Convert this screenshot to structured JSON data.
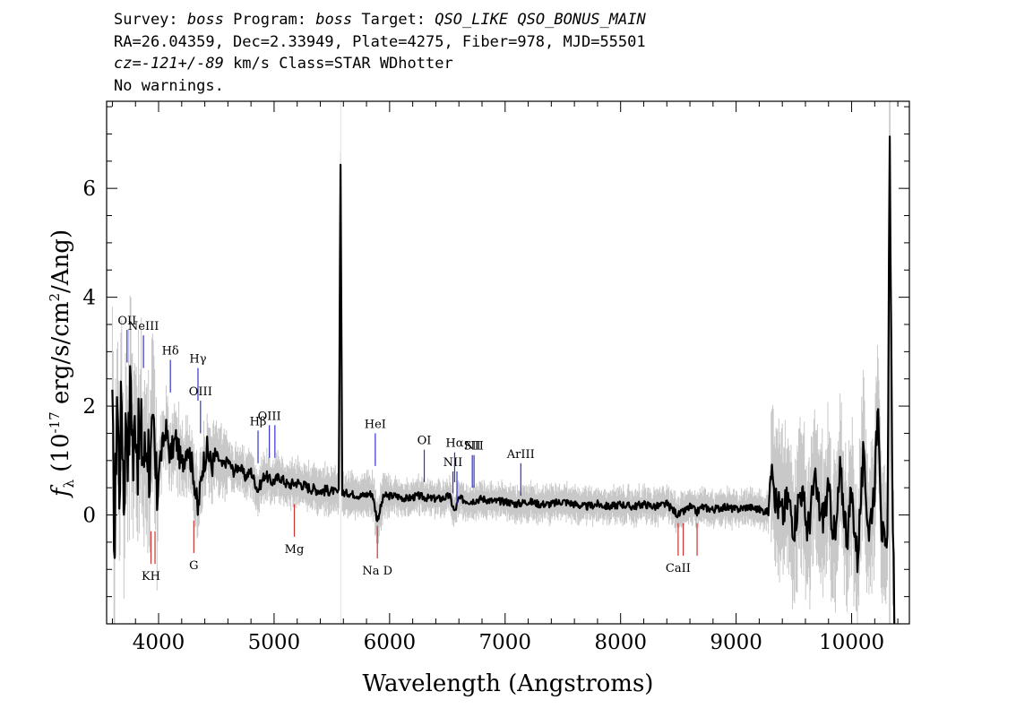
{
  "header": {
    "line1": {
      "a": "Survey: ",
      "b": "boss",
      "c": " Program: ",
      "d": "boss",
      "e": " Target: ",
      "f": "QSO_LIKE QSO_BONUS_MAIN"
    },
    "line2": "RA=26.04359, Dec=2.33949, Plate=4275, Fiber=978, MJD=55501",
    "line3": {
      "a": "cz=-121+/-89",
      "b": " km/s Class=STAR WDhotter"
    },
    "line4": "No warnings."
  },
  "chart_data": {
    "type": "line",
    "title": "",
    "xlabel": "Wavelength (Angstroms)",
    "ylabel": "f_λ (10^-17 erg/s/cm^2/Ang)",
    "xlim": [
      3550,
      10500
    ],
    "ylim": [
      -2.0,
      7.6
    ],
    "x_ticks": [
      4000,
      5000,
      6000,
      7000,
      8000,
      9000,
      10000
    ],
    "y_ticks": [
      0,
      2,
      4,
      6
    ],
    "series": [
      {
        "style": "black",
        "points": [
          [
            3600,
            1.6
          ],
          [
            3620,
            -0.6
          ],
          [
            3640,
            2.4
          ],
          [
            3660,
            0.6
          ],
          [
            3680,
            2.2
          ],
          [
            3700,
            0.4
          ],
          [
            3720,
            2.0
          ],
          [
            3740,
            1.2
          ],
          [
            3760,
            2.6
          ],
          [
            3780,
            0.9
          ],
          [
            3800,
            2.0
          ],
          [
            3820,
            1.2
          ],
          [
            3850,
            1.4
          ],
          [
            3880,
            1.0
          ],
          [
            3900,
            1.5
          ],
          [
            3930,
            0.8
          ],
          [
            3960,
            1.4
          ],
          [
            3980,
            0.3
          ],
          [
            4000,
            0.9
          ],
          [
            4030,
            1.2
          ],
          [
            4060,
            1.6
          ],
          [
            4100,
            1.1
          ],
          [
            4150,
            1.4
          ],
          [
            4200,
            0.9
          ],
          [
            4250,
            1.3
          ],
          [
            4300,
            0.8
          ],
          [
            4340,
            0.05
          ],
          [
            4380,
            0.9
          ],
          [
            4420,
            1.2
          ],
          [
            4460,
            0.9
          ],
          [
            4500,
            1.1
          ],
          [
            4550,
            0.9
          ],
          [
            4600,
            1.0
          ],
          [
            4650,
            0.8
          ],
          [
            4700,
            0.9
          ],
          [
            4750,
            0.7
          ],
          [
            4800,
            0.8
          ],
          [
            4860,
            0.45
          ],
          [
            4920,
            0.75
          ],
          [
            4980,
            0.6
          ],
          [
            5050,
            0.7
          ],
          [
            5120,
            0.55
          ],
          [
            5200,
            0.6
          ],
          [
            5300,
            0.5
          ],
          [
            5400,
            0.45
          ],
          [
            5500,
            0.45
          ],
          [
            5560,
            0.4
          ],
          [
            5575,
            6.5
          ],
          [
            5590,
            0.4
          ],
          [
            5650,
            0.4
          ],
          [
            5750,
            0.35
          ],
          [
            5850,
            0.4
          ],
          [
            5893,
            -0.1
          ],
          [
            5950,
            0.35
          ],
          [
            6050,
            0.35
          ],
          [
            6150,
            0.3
          ],
          [
            6250,
            0.35
          ],
          [
            6350,
            0.3
          ],
          [
            6450,
            0.3
          ],
          [
            6520,
            0.35
          ],
          [
            6563,
            0.05
          ],
          [
            6600,
            0.3
          ],
          [
            6700,
            0.25
          ],
          [
            6800,
            0.3
          ],
          [
            6900,
            0.25
          ],
          [
            7000,
            0.25
          ],
          [
            7100,
            0.2
          ],
          [
            7200,
            0.25
          ],
          [
            7300,
            0.2
          ],
          [
            7400,
            0.2
          ],
          [
            7500,
            0.25
          ],
          [
            7600,
            0.2
          ],
          [
            7700,
            0.15
          ],
          [
            7800,
            0.2
          ],
          [
            7900,
            0.15
          ],
          [
            8000,
            0.2
          ],
          [
            8100,
            0.15
          ],
          [
            8200,
            0.2
          ],
          [
            8300,
            0.15
          ],
          [
            8400,
            0.2
          ],
          [
            8498,
            0.0
          ],
          [
            8542,
            0.05
          ],
          [
            8600,
            0.15
          ],
          [
            8662,
            0.05
          ],
          [
            8700,
            0.15
          ],
          [
            8800,
            0.1
          ],
          [
            8900,
            0.15
          ],
          [
            9000,
            0.1
          ],
          [
            9100,
            0.15
          ],
          [
            9200,
            0.1
          ],
          [
            9280,
            0.05
          ],
          [
            9310,
            1.2
          ],
          [
            9340,
            0.3
          ],
          [
            9400,
            0.0
          ],
          [
            9450,
            0.3
          ],
          [
            9500,
            -0.2
          ],
          [
            9560,
            0.5
          ],
          [
            9620,
            -0.3
          ],
          [
            9680,
            0.6
          ],
          [
            9740,
            -0.1
          ],
          [
            9800,
            0.4
          ],
          [
            9860,
            -0.5
          ],
          [
            9900,
            0.8
          ],
          [
            9960,
            -0.4
          ],
          [
            10000,
            0.4
          ],
          [
            10050,
            -0.8
          ],
          [
            10100,
            1.0
          ],
          [
            10150,
            -0.3
          ],
          [
            10200,
            0.6
          ],
          [
            10230,
            2.2
          ],
          [
            10260,
            -0.2
          ],
          [
            10290,
            -0.7
          ],
          [
            10310,
            -0.7
          ],
          [
            10330,
            7.2
          ],
          [
            10350,
            1.0
          ],
          [
            10370,
            -2.0
          ]
        ]
      }
    ],
    "emission_lines": [
      {
        "label": "OII",
        "wave": 3727,
        "y0": 2.8,
        "y1": 3.4,
        "color": "#3333cc"
      },
      {
        "label": "NeIII",
        "wave": 3869,
        "y0": 2.7,
        "y1": 3.3,
        "color": "#3333cc"
      },
      {
        "label": "Hδ",
        "wave": 4102,
        "y0": 2.25,
        "y1": 2.85,
        "color": "#3333cc"
      },
      {
        "label": "Hγ",
        "wave": 4341,
        "y0": 2.1,
        "y1": 2.7,
        "color": "#3333cc"
      },
      {
        "label": "OIII",
        "wave": 4363,
        "y0": 1.5,
        "y1": 2.1,
        "color": "#3333cc"
      },
      {
        "label": "Hβ",
        "wave": 4861,
        "y0": 0.95,
        "y1": 1.55,
        "color": "#3333cc"
      },
      {
        "label": "OIII",
        "wave": 4959,
        "y0": 1.05,
        "y1": 1.65,
        "color": "#3333cc"
      },
      {
        "label": "",
        "wave": 5007,
        "y0": 1.05,
        "y1": 1.65,
        "color": "#3333cc"
      },
      {
        "label": "HeI",
        "wave": 5876,
        "y0": 0.9,
        "y1": 1.5,
        "color": "#3333cc"
      },
      {
        "label": "OI",
        "wave": 6300,
        "y0": 0.6,
        "y1": 1.2,
        "color": "#3333cc"
      },
      {
        "label": "NII",
        "wave": 6548,
        "y0": 0.4,
        "y1": 0.8,
        "color": "#3333cc"
      },
      {
        "label": "Hα",
        "wave": 6563,
        "y0": 0.6,
        "y1": 1.15,
        "color": "#3333cc"
      },
      {
        "label": "",
        "wave": 6583,
        "y0": 0.2,
        "y1": 0.8,
        "color": "#3333cc"
      },
      {
        "label": "SII",
        "wave": 6716,
        "y0": 0.5,
        "y1": 1.1,
        "color": "#3333cc"
      },
      {
        "label": "NII",
        "wave": 6731,
        "y0": 0.5,
        "y1": 1.1,
        "color": "#3333cc"
      },
      {
        "label": "ArIII",
        "wave": 7136,
        "y0": 0.35,
        "y1": 0.95,
        "color": "#3333cc"
      }
    ],
    "absorption_lines": [
      {
        "label": "KH",
        "wave": 3934,
        "y0": -0.3,
        "y1": -0.9,
        "color": "#cc3333"
      },
      {
        "label": "",
        "wave": 3969,
        "y0": -0.3,
        "y1": -0.9,
        "color": "#cc3333"
      },
      {
        "label": "G",
        "wave": 4305,
        "y0": -0.1,
        "y1": -0.7,
        "color": "#cc3333"
      },
      {
        "label": "Mg",
        "wave": 5175,
        "y0": 0.2,
        "y1": -0.4,
        "color": "#cc3333"
      },
      {
        "label": "Na D",
        "wave": 5894,
        "y0": -0.2,
        "y1": -0.8,
        "color": "#cc3333"
      },
      {
        "label": "CaII",
        "wave": 8498,
        "y0": -0.15,
        "y1": -0.75,
        "color": "#cc3333"
      },
      {
        "label": "",
        "wave": 8542,
        "y0": -0.15,
        "y1": -0.75,
        "color": "#cc3333"
      },
      {
        "label": "",
        "wave": 8662,
        "y0": -0.15,
        "y1": -0.75,
        "color": "#cc3333"
      }
    ]
  }
}
